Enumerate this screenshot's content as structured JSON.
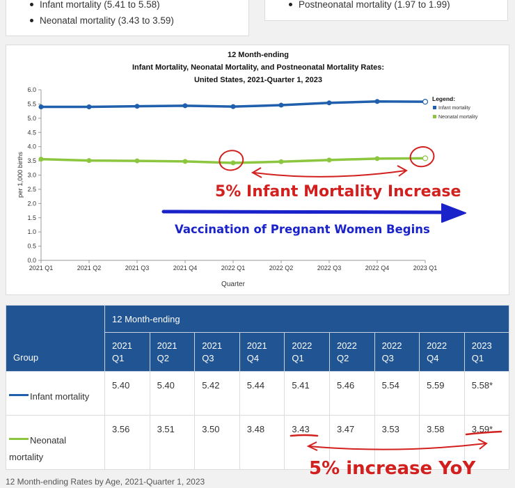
{
  "summary_left": {
    "items": [
      "Infant mortality (5.41 to 5.58)",
      "Neonatal mortality (3.43 to 3.59)"
    ]
  },
  "summary_right": {
    "items": [
      "Postneonatal mortality (1.97 to 1.99)"
    ]
  },
  "chart_data": {
    "type": "line",
    "title_lines": [
      "12 Month-ending",
      "Infant Mortality, Neonatal Mortality, and Postneonatal Mortality Rates:",
      "United States, 2021-Quarter 1, 2023"
    ],
    "xlabel": "Quarter",
    "ylabel": "per 1,000 births",
    "ylim": [
      0,
      6
    ],
    "yticks": [
      "0.0",
      "0.5",
      "1.0",
      "1.5",
      "2.0",
      "2.5",
      "3.0",
      "3.5",
      "4.0",
      "4.5",
      "5.0",
      "5.5",
      "6.0"
    ],
    "categories": [
      "2021 Q1",
      "2021 Q2",
      "2021 Q3",
      "2021 Q4",
      "2022 Q1",
      "2022 Q2",
      "2022 Q3",
      "2022 Q4",
      "2023 Q1"
    ],
    "legend_title": "Legend:",
    "legend_position": "right",
    "series": [
      {
        "name": "Infant mortality",
        "color": "#1f5fab",
        "values": [
          5.4,
          5.4,
          5.42,
          5.44,
          5.41,
          5.46,
          5.54,
          5.59,
          5.58
        ]
      },
      {
        "name": "Neonatal mortality",
        "color": "#8cc63f",
        "values": [
          3.56,
          3.51,
          3.5,
          3.48,
          3.43,
          3.47,
          3.53,
          3.58,
          3.59
        ]
      }
    ],
    "annotations": [
      {
        "text": "5% Infant Mortality Increase",
        "color": "#d2201e"
      },
      {
        "text": "Vaccination of Pregnant Women Begins",
        "color": "#1a22c9"
      }
    ]
  },
  "table": {
    "group_header": "Group",
    "span_header": "12 Month-ending",
    "columns": [
      [
        "2021",
        "Q1"
      ],
      [
        "2021",
        "Q2"
      ],
      [
        "2021",
        "Q3"
      ],
      [
        "2021",
        "Q4"
      ],
      [
        "2022",
        "Q1"
      ],
      [
        "2022",
        "Q2"
      ],
      [
        "2022",
        "Q3"
      ],
      [
        "2022",
        "Q4"
      ],
      [
        "2023",
        "Q1"
      ]
    ],
    "rows": [
      {
        "group": "Infant mortality",
        "line_color": "#1f5fab",
        "values": [
          "5.40",
          "5.40",
          "5.42",
          "5.44",
          "5.41",
          "5.46",
          "5.54",
          "5.59",
          "5.58*"
        ]
      },
      {
        "group_line1": "Neonatal",
        "group_line2": "mortality",
        "line_color": "#8cc63f",
        "values": [
          "3.56",
          "3.51",
          "3.50",
          "3.48",
          "3.43",
          "3.47",
          "3.53",
          "3.58",
          "3.59*"
        ]
      }
    ],
    "annotation": {
      "text": "5% increase YoY",
      "color": "#d2201e"
    }
  },
  "caption": "12 Month-ending Rates by Age, 2021-Quarter 1, 2023"
}
